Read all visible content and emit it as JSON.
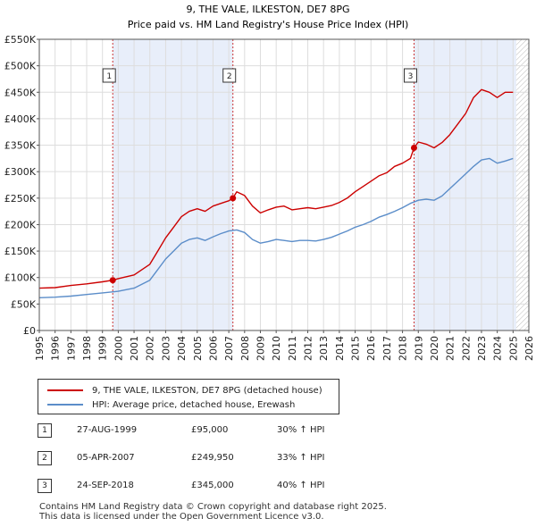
{
  "chart_data": {
    "type": "line",
    "title": "9, THE VALE, ILKESTON, DE7 8PG",
    "subtitle": "Price paid vs. HM Land Registry's House Price Index (HPI)",
    "xlabel": "",
    "ylabel": "",
    "xlim": [
      1995,
      2026
    ],
    "ylim": [
      0,
      550000
    ],
    "x_ticks": [
      1995,
      1996,
      1997,
      1998,
      1999,
      2000,
      2001,
      2002,
      2003,
      2004,
      2005,
      2006,
      2007,
      2008,
      2009,
      2010,
      2011,
      2012,
      2013,
      2014,
      2015,
      2016,
      2017,
      2018,
      2019,
      2020,
      2021,
      2022,
      2023,
      2024,
      2025,
      2026
    ],
    "y_ticks": [
      {
        "value": 0,
        "label": "£0"
      },
      {
        "value": 50000,
        "label": "£50K"
      },
      {
        "value": 100000,
        "label": "£100K"
      },
      {
        "value": 150000,
        "label": "£150K"
      },
      {
        "value": 200000,
        "label": "£200K"
      },
      {
        "value": 250000,
        "label": "£250K"
      },
      {
        "value": 300000,
        "label": "£300K"
      },
      {
        "value": 350000,
        "label": "£350K"
      },
      {
        "value": 400000,
        "label": "£400K"
      },
      {
        "value": 450000,
        "label": "£450K"
      },
      {
        "value": 500000,
        "label": "£500K"
      },
      {
        "value": 550000,
        "label": "£550K"
      }
    ],
    "grid": true,
    "shaded_periods": [
      [
        1999.65,
        2007.26
      ],
      [
        2018.73,
        2025.2
      ]
    ],
    "future_hatch_from": 2025.2,
    "series": [
      {
        "name": "9, THE VALE, ILKESTON, DE7 8PG (detached house)",
        "color": "#cc0000",
        "x": [
          1995,
          1996,
          1997,
          1998,
          1999,
          1999.65,
          2000,
          2001,
          2002,
          2002.5,
          2003,
          2003.5,
          2004,
          2004.5,
          2005,
          2005.5,
          2006,
          2006.5,
          2007,
          2007.26,
          2007.5,
          2008,
          2008.5,
          2009,
          2009.5,
          2010,
          2010.5,
          2011,
          2011.5,
          2012,
          2012.5,
          2013,
          2013.5,
          2014,
          2014.5,
          2015,
          2015.5,
          2016,
          2016.5,
          2017,
          2017.5,
          2018,
          2018.5,
          2018.73,
          2019,
          2019.5,
          2020,
          2020.5,
          2021,
          2021.5,
          2022,
          2022.5,
          2023,
          2023.5,
          2024,
          2024.5,
          2025
        ],
        "values": [
          80000,
          81000,
          85000,
          88000,
          92000,
          95000,
          98000,
          105000,
          125000,
          150000,
          175000,
          195000,
          215000,
          225000,
          230000,
          225000,
          235000,
          240000,
          245000,
          249950,
          262000,
          255000,
          235000,
          222000,
          228000,
          233000,
          235000,
          228000,
          230000,
          232000,
          230000,
          233000,
          236000,
          242000,
          250000,
          262000,
          272000,
          282000,
          292000,
          298000,
          310000,
          316000,
          325000,
          345000,
          356000,
          352000,
          345000,
          355000,
          370000,
          390000,
          410000,
          440000,
          455000,
          450000,
          440000,
          450000,
          450000
        ]
      },
      {
        "name": "HPI: Average price, detached house, Erewash",
        "color": "#5b8dc9",
        "x": [
          1995,
          1996,
          1997,
          1998,
          1999,
          2000,
          2001,
          2002,
          2002.5,
          2003,
          2003.5,
          2004,
          2004.5,
          2005,
          2005.5,
          2006,
          2006.5,
          2007,
          2007.5,
          2008,
          2008.5,
          2009,
          2009.5,
          2010,
          2010.5,
          2011,
          2011.5,
          2012,
          2012.5,
          2013,
          2013.5,
          2014,
          2014.5,
          2015,
          2015.5,
          2016,
          2016.5,
          2017,
          2017.5,
          2018,
          2018.5,
          2019,
          2019.5,
          2020,
          2020.5,
          2021,
          2021.5,
          2022,
          2022.5,
          2023,
          2023.5,
          2024,
          2024.5,
          2025
        ],
        "values": [
          62000,
          63000,
          65000,
          68000,
          71000,
          74000,
          80000,
          95000,
          115000,
          135000,
          150000,
          165000,
          172000,
          175000,
          170000,
          177000,
          183000,
          188000,
          190000,
          185000,
          172000,
          165000,
          168000,
          172000,
          170000,
          168000,
          170000,
          170000,
          169000,
          172000,
          176000,
          182000,
          188000,
          195000,
          200000,
          206000,
          214000,
          219000,
          225000,
          232000,
          240000,
          246000,
          248000,
          246000,
          254000,
          268000,
          282000,
          296000,
          310000,
          322000,
          325000,
          316000,
          320000,
          325000
        ]
      }
    ],
    "sales": [
      {
        "label": "1",
        "x": 1999.65,
        "value": 95000,
        "date": "27-AUG-1999",
        "price": "£95,000",
        "hpi": "30% ↑ HPI"
      },
      {
        "label": "2",
        "x": 2007.26,
        "value": 249950,
        "date": "05-APR-2007",
        "price": "£249,950",
        "hpi": "33% ↑ HPI"
      },
      {
        "label": "3",
        "x": 2018.73,
        "value": 345000,
        "date": "24-SEP-2018",
        "price": "£345,000",
        "hpi": "40% ↑ HPI"
      }
    ]
  },
  "footer": {
    "line1": "Contains HM Land Registry data © Crown copyright and database right 2025.",
    "line2": "This data is licensed under the Open Government Licence v3.0."
  },
  "colors": {
    "property": "#cc0000",
    "hpi": "#5b8dc9",
    "shade": "#e8eefa",
    "marker_line": "#cc3333"
  }
}
